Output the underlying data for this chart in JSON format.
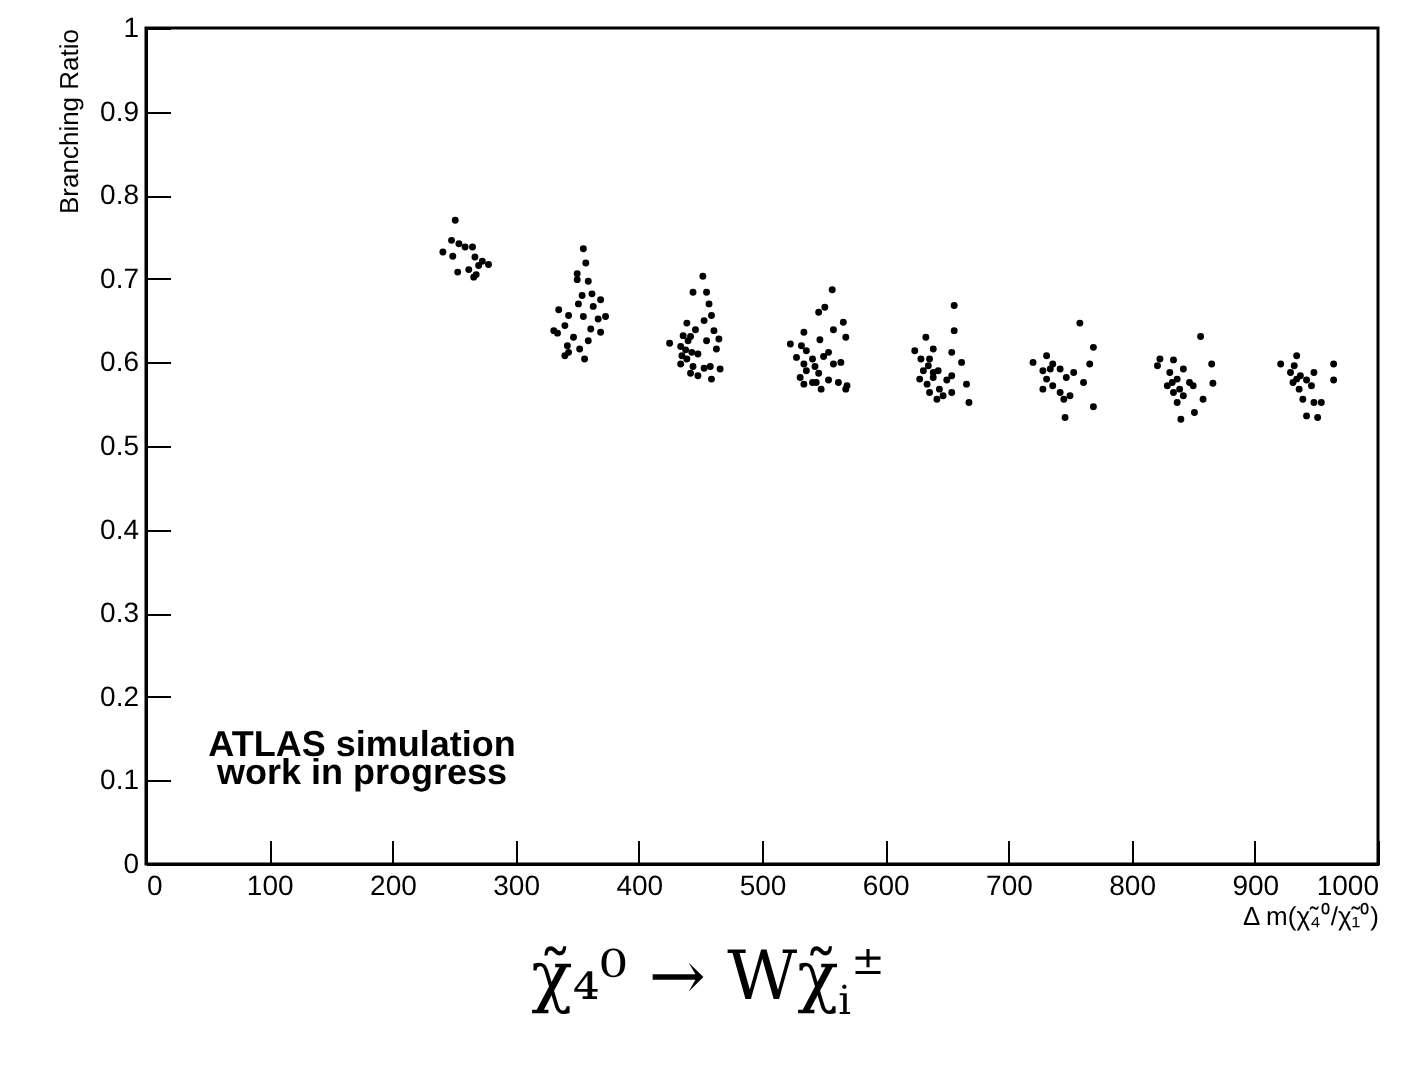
{
  "chart_data": {
    "type": "scatter",
    "title": "χ̃₄⁰ → Wχ̃$_{i}$$^{±}$",
    "xlabel": "Δ m(χ̃₄⁰/χ̃₁⁰)",
    "ylabel": "Branching Ratio",
    "annotations": [
      "ATLAS simulation",
      "work in progress"
    ],
    "xlim": [
      0,
      1000
    ],
    "ylim": [
      0,
      1
    ],
    "xticks": [
      0,
      100,
      200,
      300,
      400,
      500,
      600,
      700,
      800,
      900,
      1000
    ],
    "yticks": [
      0,
      0.1,
      0.2,
      0.3,
      0.4,
      0.5,
      0.6,
      0.7,
      0.8,
      0.9,
      1
    ],
    "marker": "circle",
    "grid": false,
    "series": [
      {
        "color": "#000000",
        "x": [
          251,
          248,
          254,
          259,
          265,
          241,
          249,
          267,
          273,
          278,
          270,
          262,
          253,
          268,
          266,
          355,
          357,
          350,
          350,
          359,
          362,
          354,
          369,
          351,
          363,
          335,
          343,
          355,
          373,
          367,
          340,
          361,
          331,
          334,
          369,
          347,
          359,
          342,
          352,
          343,
          340,
          356,
          452,
          444,
          455,
          457,
          459,
          439,
          453,
          446,
          461,
          436,
          442,
          465,
          425,
          440,
          455,
          434,
          463,
          443,
          435,
          448,
          439,
          458,
          444,
          466,
          434,
          442,
          448,
          459,
          453,
          438,
          557,
          551,
          546,
          566,
          534,
          558,
          547,
          568,
          523,
          532,
          536,
          554,
          528,
          541,
          550,
          564,
          534,
          543,
          558,
          536,
          546,
          531,
          554,
          562,
          541,
          569,
          534,
          548,
          568,
          544,
          656,
          633,
          656,
          624,
          639,
          654,
          629,
          635,
          662,
          631,
          643,
          654,
          628,
          639,
          650,
          634,
          644,
          666,
          636,
          654,
          642,
          647,
          668,
          639,
          636,
          758,
          769,
          731,
          720,
          736,
          766,
          728,
          742,
          753,
          731,
          747,
          761,
          736,
          742,
          728,
          750,
          745,
          769,
          746,
          734,
          856,
          823,
          834,
          821,
          842,
          831,
          865,
          837,
          847,
          829,
          839,
          850,
          866,
          834,
          842,
          837,
          858,
          851,
          840,
          833,
          934,
          921,
          932,
          964,
          929,
          937,
          948,
          931,
          942,
          964,
          936,
          946,
          939,
          948,
          954,
          942,
          951,
          934
        ],
        "values": [
          0.77,
          0.746,
          0.742,
          0.738,
          0.738,
          0.732,
          0.727,
          0.726,
          0.721,
          0.717,
          0.716,
          0.711,
          0.708,
          0.705,
          0.702,
          0.736,
          0.719,
          0.706,
          0.699,
          0.697,
          0.682,
          0.68,
          0.675,
          0.67,
          0.667,
          0.663,
          0.656,
          0.655,
          0.655,
          0.652,
          0.644,
          0.64,
          0.638,
          0.635,
          0.636,
          0.63,
          0.626,
          0.62,
          0.616,
          0.612,
          0.608,
          0.604,
          0.703,
          0.684,
          0.684,
          0.67,
          0.656,
          0.647,
          0.65,
          0.639,
          0.638,
          0.632,
          0.631,
          0.628,
          0.623,
          0.626,
          0.626,
          0.619,
          0.616,
          0.612,
          0.608,
          0.61,
          0.604,
          0.595,
          0.595,
          0.592,
          0.598,
          0.587,
          0.584,
          0.58,
          0.593,
          0.615,
          0.687,
          0.666,
          0.66,
          0.648,
          0.636,
          0.639,
          0.627,
          0.63,
          0.622,
          0.62,
          0.614,
          0.612,
          0.606,
          0.604,
          0.607,
          0.6,
          0.598,
          0.595,
          0.598,
          0.59,
          0.587,
          0.582,
          0.579,
          0.576,
          0.576,
          0.572,
          0.574,
          0.568,
          0.568,
          0.576,
          0.668,
          0.63,
          0.638,
          0.614,
          0.616,
          0.612,
          0.604,
          0.596,
          0.6,
          0.59,
          0.59,
          0.584,
          0.58,
          0.582,
          0.579,
          0.574,
          0.568,
          0.574,
          0.564,
          0.564,
          0.556,
          0.56,
          0.552,
          0.588,
          0.604,
          0.647,
          0.618,
          0.608,
          0.6,
          0.598,
          0.598,
          0.59,
          0.592,
          0.588,
          0.58,
          0.582,
          0.576,
          0.572,
          0.564,
          0.568,
          0.56,
          0.556,
          0.547,
          0.534,
          0.592,
          0.631,
          0.604,
          0.603,
          0.596,
          0.592,
          0.588,
          0.598,
          0.58,
          0.576,
          0.572,
          0.568,
          0.572,
          0.575,
          0.564,
          0.56,
          0.552,
          0.556,
          0.54,
          0.532,
          0.576,
          0.608,
          0.598,
          0.596,
          0.598,
          0.588,
          0.584,
          0.588,
          0.576,
          0.579,
          0.579,
          0.568,
          0.572,
          0.556,
          0.552,
          0.552,
          0.536,
          0.534,
          0.58
        ]
      }
    ]
  }
}
